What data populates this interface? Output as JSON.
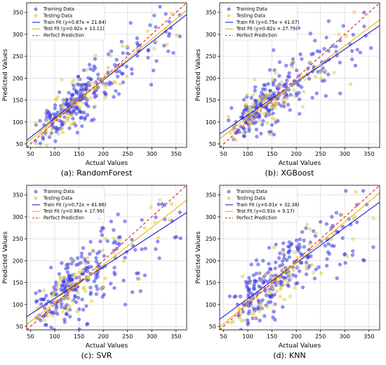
{
  "chart_data": [
    {
      "type": "scatter",
      "caption": "(a): RandomForest",
      "xlabel": "Actual Values",
      "ylabel": "Predicted Values",
      "xlim": [
        42,
        372
      ],
      "ylim": [
        42,
        372
      ],
      "xticks": [
        50,
        100,
        150,
        200,
        250,
        300,
        350
      ],
      "yticks": [
        50,
        100,
        150,
        200,
        250,
        300,
        350
      ],
      "grid": true,
      "legend_position": "top-left",
      "legend": [
        "Training Data",
        "Testing Data",
        "Train Fit (y=0.87x + 21.64)",
        "Test Fit (y=0.92x + 13.11)",
        "Perfect Prediction"
      ],
      "train_fit": {
        "slope": 0.87,
        "intercept": 21.64
      },
      "test_fit": {
        "slope": 0.92,
        "intercept": 13.11
      },
      "perfect_prediction": {
        "slope": 1,
        "intercept": 0
      },
      "train_spread": 0.55,
      "test_spread": 0.5
    },
    {
      "type": "scatter",
      "caption": "(b): XGBoost",
      "xlabel": "Actual Values",
      "ylabel": "Predicted Values",
      "xlim": [
        42,
        372
      ],
      "ylim": [
        42,
        372
      ],
      "xticks": [
        50,
        100,
        150,
        200,
        250,
        300,
        350
      ],
      "yticks": [
        50,
        100,
        150,
        200,
        250,
        300,
        350
      ],
      "grid": true,
      "legend_position": "top-left",
      "legend": [
        "Training Data",
        "Testing Data",
        "Train Fit (y=0.75x + 41.07)",
        "Test Fit (y=0.82x + 27.79)",
        "Perfect Prediction"
      ],
      "train_fit": {
        "slope": 0.75,
        "intercept": 41.07
      },
      "test_fit": {
        "slope": 0.82,
        "intercept": 27.79
      },
      "perfect_prediction": {
        "slope": 1,
        "intercept": 0
      },
      "train_spread": 0.7,
      "test_spread": 0.6
    },
    {
      "type": "scatter",
      "caption": "(c): SVR",
      "xlabel": "Actual Values",
      "ylabel": "Predicted Values",
      "xlim": [
        42,
        372
      ],
      "ylim": [
        42,
        372
      ],
      "xticks": [
        50,
        100,
        150,
        200,
        250,
        300,
        350
      ],
      "yticks": [
        50,
        100,
        150,
        200,
        250,
        300,
        350
      ],
      "grid": true,
      "legend_position": "top-left",
      "legend": [
        "Training Data",
        "Testing Data",
        "Train Fit (y=0.72x + 41.86)",
        "Test Fit (y=0.86x + 17.99)",
        "Perfect Prediction"
      ],
      "train_fit": {
        "slope": 0.72,
        "intercept": 41.86
      },
      "test_fit": {
        "slope": 0.86,
        "intercept": 17.99
      },
      "perfect_prediction": {
        "slope": 1,
        "intercept": 0
      },
      "train_spread": 1.0,
      "test_spread": 0.8
    },
    {
      "type": "scatter",
      "caption": "(d): KNN",
      "xlabel": "Actual Values",
      "ylabel": "Predicted Values",
      "xlim": [
        42,
        372
      ],
      "ylim": [
        42,
        372
      ],
      "xticks": [
        50,
        100,
        150,
        200,
        250,
        300,
        350
      ],
      "yticks": [
        50,
        100,
        150,
        200,
        250,
        300,
        350
      ],
      "grid": true,
      "legend_position": "top-left",
      "legend": [
        "Training Data",
        "Testing Data",
        "Train Fit (y=0.81x + 32.38)",
        "Test Fit (y=0.93x + 9.17)",
        "Perfect Prediction"
      ],
      "train_fit": {
        "slope": 0.81,
        "intercept": 32.38
      },
      "test_fit": {
        "slope": 0.93,
        "intercept": 9.17
      },
      "perfect_prediction": {
        "slope": 1,
        "intercept": 0
      },
      "train_spread": 0.85,
      "test_spread": 0.7
    }
  ],
  "colors": {
    "training": "#3b3be6",
    "testing": "#e8c84a",
    "train_fit": "#2020cc",
    "test_fit": "#e6b800",
    "perfect": "#e02020",
    "grid": "#d9d9d9"
  }
}
